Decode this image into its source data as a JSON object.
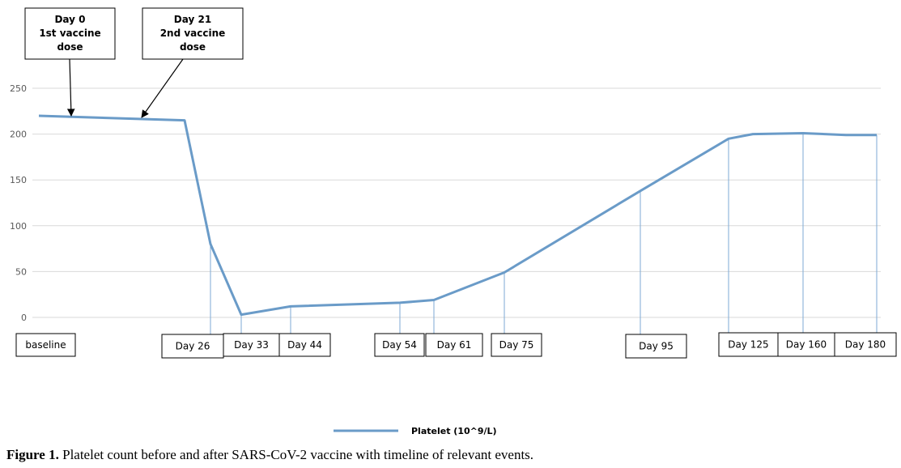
{
  "chart_data": {
    "type": "line",
    "categories": [
      "baseline",
      "Day 26",
      "Day 33",
      "Day 44",
      "Day 54",
      "Day 61",
      "Day 75",
      "Day 95",
      "Day 125",
      "Day 160",
      "Day 180"
    ],
    "series": [
      {
        "name": "Platelet (10^9/L)",
        "values": [
          220,
          80,
          3,
          12,
          16,
          19,
          49,
          138,
          195,
          201,
          199
        ],
        "color": "#6a9bc8"
      }
    ],
    "unlabeled_points": [
      {
        "note": "vertex just before Day 26 drop",
        "value": 215
      },
      {
        "note": "vertex between Day 125 and Day 160",
        "value": 200
      },
      {
        "note": "vertex between Day 160 and Day 180",
        "value": 199
      }
    ],
    "yticks": [
      "0",
      "50",
      "100",
      "150",
      "200",
      "250"
    ],
    "ylim": [
      0,
      250
    ],
    "grid": true,
    "legend_position": "bottom",
    "annotations": [
      {
        "lines": [
          "Day 0",
          "1st vaccine",
          "dose"
        ]
      },
      {
        "lines": [
          "Day 21",
          "2nd vaccine",
          "dose"
        ]
      }
    ]
  },
  "caption": {
    "label": "Figure 1.",
    "text": " Platelet count before and after SARS-CoV-2 vaccine with timeline of relevant events."
  }
}
